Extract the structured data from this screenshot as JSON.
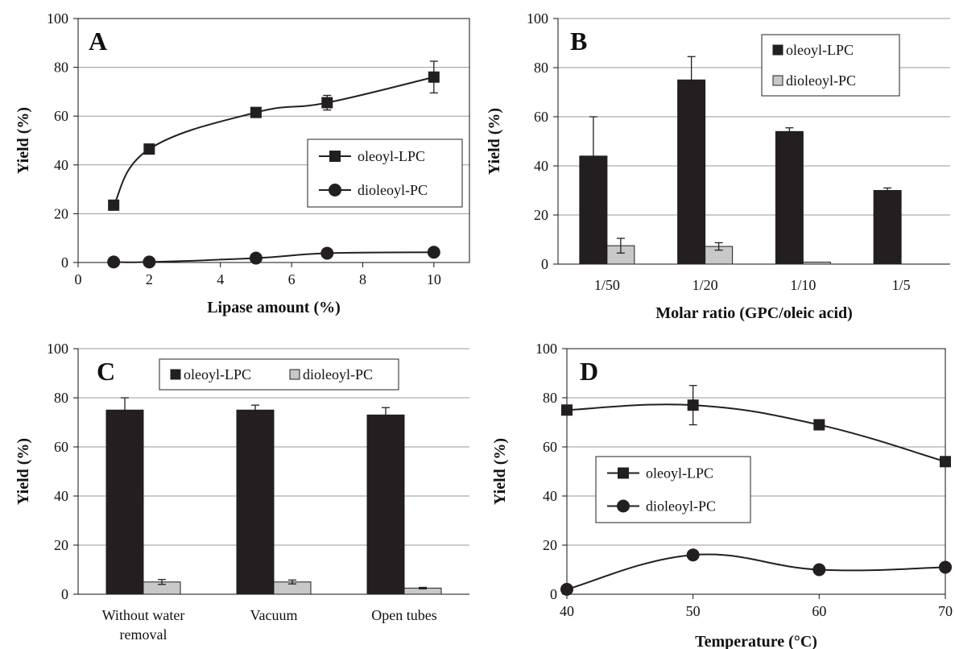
{
  "chart_data": [
    {
      "panel": "A",
      "type": "line",
      "xlabel": "Lipase amount (%)",
      "ylabel": "Yield (%)",
      "xlim": [
        0,
        11
      ],
      "ylim": [
        0,
        100
      ],
      "xticks": [
        0,
        2,
        4,
        6,
        8,
        10
      ],
      "yticks": [
        0,
        20,
        40,
        60,
        80,
        100
      ],
      "grid": "horizontal",
      "legend": "right",
      "series": [
        {
          "name": "oleoyl-LPC",
          "marker": "square",
          "x": [
            1,
            2,
            5,
            7,
            10
          ],
          "y": [
            23.5,
            46.5,
            61.5,
            65.5,
            76
          ],
          "err": [
            0,
            0,
            0,
            3,
            6.5
          ]
        },
        {
          "name": "dioleoyl-PC",
          "marker": "circle",
          "x": [
            1,
            2,
            5,
            7,
            10
          ],
          "y": [
            0.2,
            0.2,
            1.8,
            3.8,
            4.2
          ],
          "err": [
            0,
            0,
            0,
            0,
            0
          ]
        }
      ]
    },
    {
      "panel": "B",
      "type": "bar",
      "xlabel": "Molar ratio (GPC/oleic acid)",
      "ylabel": "Yield (%)",
      "ylim": [
        0,
        100
      ],
      "yticks": [
        0,
        20,
        40,
        60,
        80,
        100
      ],
      "grid": "horizontal",
      "legend": "top-right",
      "categories": [
        "1/50",
        "1/20",
        "1/10",
        "1/5"
      ],
      "series": [
        {
          "name": "oleoyl-LPC",
          "color": "#231f20",
          "values": [
            44,
            75,
            54,
            30
          ],
          "err": [
            16,
            9.5,
            1.5,
            1
          ]
        },
        {
          "name": "dioleoyl-PC",
          "color": "#c8c8c8",
          "values": [
            7.5,
            7.2,
            0.8,
            0
          ],
          "err": [
            3,
            1.5,
            0,
            0
          ]
        }
      ]
    },
    {
      "panel": "C",
      "type": "bar",
      "xlabel": "",
      "ylabel": "Yield (%)",
      "ylim": [
        0,
        100
      ],
      "yticks": [
        0,
        20,
        40,
        60,
        80,
        100
      ],
      "grid": "horizontal",
      "legend": "top",
      "categories": [
        "Without water removal",
        "Vacuum",
        "Open tubes"
      ],
      "category_lines": [
        [
          "Without water",
          "removal"
        ],
        [
          "Vacuum"
        ],
        [
          "Open tubes"
        ]
      ],
      "series": [
        {
          "name": "oleoyl-LPC",
          "color": "#231f20",
          "values": [
            75,
            75,
            73
          ],
          "err": [
            5,
            2,
            3
          ]
        },
        {
          "name": "dioleoyl-PC",
          "color": "#c8c8c8",
          "values": [
            5,
            5,
            2.5
          ],
          "err": [
            1,
            0.8,
            0.3
          ]
        }
      ]
    },
    {
      "panel": "D",
      "type": "line",
      "xlabel": "Temperature (°C)",
      "ylabel": "Yield (%)",
      "xlim": [
        40,
        70
      ],
      "ylim": [
        0,
        100
      ],
      "xticks": [
        40,
        50,
        60,
        70
      ],
      "yticks": [
        0,
        20,
        40,
        60,
        80,
        100
      ],
      "grid": "horizontal",
      "legend": "center-left",
      "series": [
        {
          "name": "oleoyl-LPC",
          "marker": "square",
          "x": [
            40,
            50,
            60,
            70
          ],
          "y": [
            75,
            77,
            69,
            54
          ],
          "err": [
            0,
            8,
            0,
            0
          ]
        },
        {
          "name": "dioleoyl-PC",
          "marker": "circle",
          "x": [
            40,
            50,
            60,
            70
          ],
          "y": [
            2,
            16,
            10,
            11
          ],
          "err": [
            0,
            0,
            0,
            0
          ]
        }
      ]
    }
  ],
  "colors": {
    "axis": "#111111",
    "grid": "#9a9a9a",
    "dark_bar": "#231f20",
    "light_bar": "#c8c8c8"
  }
}
